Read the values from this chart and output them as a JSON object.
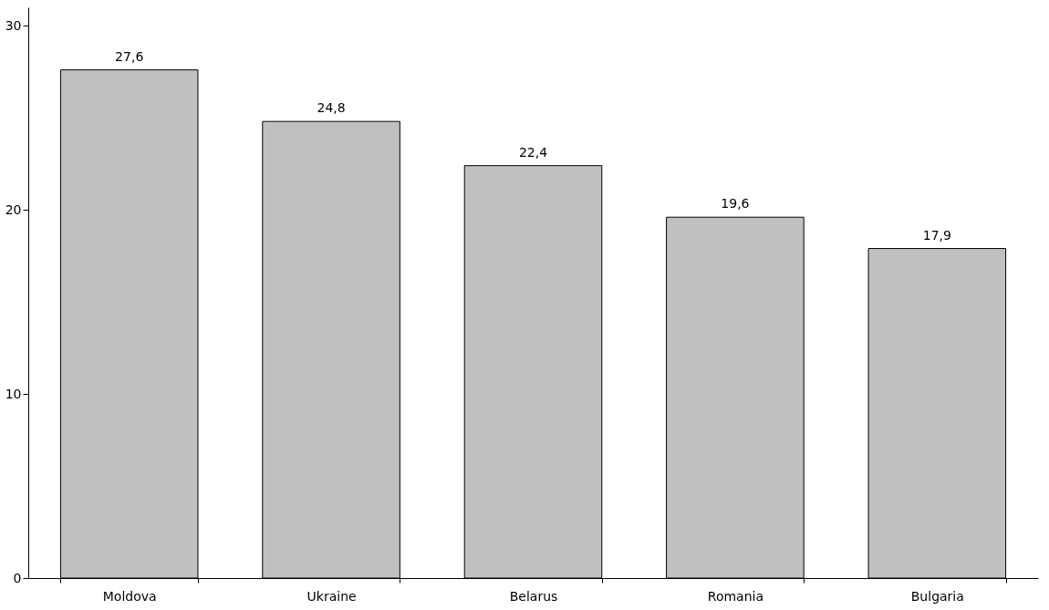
{
  "chart_data": {
    "type": "bar",
    "categories": [
      "Moldova",
      "Ukraine",
      "Belarus",
      "Romania",
      "Bulgaria"
    ],
    "values": [
      27.6,
      24.8,
      22.4,
      19.6,
      17.9
    ],
    "value_labels": [
      "27,6",
      "24,8",
      "22,4",
      "19,6",
      "17,9"
    ],
    "color": "#c0c0c0",
    "ylim": [
      0,
      31
    ],
    "yticks": [
      0,
      10,
      20,
      30
    ],
    "grid": false
  }
}
